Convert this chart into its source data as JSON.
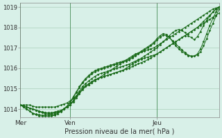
{
  "title": "",
  "xlabel": "Pression niveau de la mer( hPa )",
  "ylabel": "",
  "bg_color": "#d8f0e8",
  "grid_color": "#a0c8b0",
  "line_color": "#1a6b1a",
  "ylim": [
    1013.6,
    1019.2
  ],
  "xlim": [
    0,
    64
  ],
  "day_labels": [
    "Mer",
    "Ven",
    "Jeu"
  ],
  "day_positions": [
    0,
    16,
    44
  ],
  "yticks": [
    1014,
    1015,
    1016,
    1017,
    1018,
    1019
  ],
  "series": [
    {
      "x": [
        0,
        1,
        2,
        3,
        4,
        5,
        6,
        7,
        8,
        9,
        10,
        11,
        12,
        13,
        14,
        15,
        16,
        17,
        18,
        19,
        20,
        21,
        22,
        23,
        24,
        25,
        26,
        27,
        28,
        29,
        30,
        31,
        32,
        33,
        34,
        35,
        36,
        37,
        38,
        39,
        40,
        41,
        42,
        43,
        44,
        45,
        46,
        47,
        48,
        49,
        50,
        51,
        52,
        53,
        54,
        55,
        56,
        57,
        58,
        59,
        60,
        61,
        62,
        63,
        64
      ],
      "y": [
        1014.2,
        1014.2,
        1014.2,
        1014.2,
        1014.15,
        1014.1,
        1014.1,
        1014.1,
        1014.1,
        1014.1,
        1014.1,
        1014.1,
        1014.15,
        1014.2,
        1014.25,
        1014.3,
        1014.4,
        1014.5,
        1014.65,
        1014.8,
        1015.0,
        1015.1,
        1015.2,
        1015.3,
        1015.4,
        1015.5,
        1015.6,
        1015.7,
        1015.8,
        1015.9,
        1016.0,
        1016.1,
        1016.2,
        1016.3,
        1016.4,
        1016.5,
        1016.6,
        1016.7,
        1016.75,
        1016.8,
        1016.85,
        1016.9,
        1016.95,
        1017.0,
        1017.1,
        1017.2,
        1017.3,
        1017.4,
        1017.5,
        1017.6,
        1017.7,
        1017.8,
        1017.9,
        1018.0,
        1018.1,
        1018.2,
        1018.3,
        1018.4,
        1018.5,
        1018.6,
        1018.7,
        1018.8,
        1018.9,
        1018.95,
        1019.0
      ]
    },
    {
      "x": [
        0,
        1,
        2,
        3,
        4,
        5,
        6,
        7,
        8,
        9,
        10,
        11,
        12,
        13,
        14,
        15,
        16,
        17,
        18,
        19,
        20,
        21,
        22,
        23,
        24,
        25,
        26,
        27,
        28,
        29,
        30,
        31,
        32,
        33,
        34,
        35,
        36,
        37,
        38,
        39,
        40,
        41,
        42,
        43,
        44,
        45,
        46,
        47,
        48,
        49,
        50,
        51,
        52,
        53,
        54,
        55,
        56,
        57,
        58,
        59,
        60,
        61,
        62,
        63,
        64
      ],
      "y": [
        1014.2,
        1014.15,
        1014.1,
        1014.05,
        1014.0,
        1013.95,
        1013.9,
        1013.85,
        1013.82,
        1013.82,
        1013.82,
        1013.85,
        1013.9,
        1013.95,
        1014.0,
        1014.1,
        1014.2,
        1014.35,
        1014.55,
        1014.75,
        1014.95,
        1015.1,
        1015.2,
        1015.3,
        1015.4,
        1015.5,
        1015.55,
        1015.6,
        1015.65,
        1015.7,
        1015.75,
        1015.8,
        1015.85,
        1015.9,
        1016.0,
        1016.1,
        1016.2,
        1016.3,
        1016.38,
        1016.45,
        1016.5,
        1016.55,
        1016.6,
        1016.65,
        1016.7,
        1016.8,
        1016.9,
        1017.0,
        1017.1,
        1017.2,
        1017.3,
        1017.4,
        1017.5,
        1017.6,
        1017.7,
        1017.8,
        1017.9,
        1018.0,
        1018.1,
        1018.2,
        1018.3,
        1018.4,
        1018.5,
        1018.6,
        1018.7
      ]
    },
    {
      "x": [
        0,
        1,
        2,
        3,
        4,
        5,
        6,
        7,
        8,
        9,
        10,
        11,
        12,
        13,
        14,
        15,
        16,
        17,
        18,
        19,
        20,
        21,
        22,
        23,
        24,
        25,
        26,
        27,
        28,
        29,
        30,
        31,
        32,
        33,
        34,
        35,
        36,
        37,
        38,
        39,
        40,
        41,
        42,
        43,
        44,
        45,
        46,
        47,
        48,
        49,
        50,
        51,
        52,
        53,
        54,
        55,
        56,
        57,
        58,
        59,
        60,
        61,
        62,
        63,
        64
      ],
      "y": [
        1014.2,
        1014.15,
        1014.1,
        1014.05,
        1014.0,
        1013.95,
        1013.9,
        1013.85,
        1013.82,
        1013.8,
        1013.8,
        1013.82,
        1013.85,
        1013.9,
        1014.0,
        1014.1,
        1014.2,
        1014.4,
        1014.6,
        1014.8,
        1015.0,
        1015.15,
        1015.25,
        1015.35,
        1015.45,
        1015.5,
        1015.55,
        1015.6,
        1015.65,
        1015.7,
        1015.75,
        1015.8,
        1015.85,
        1015.9,
        1015.95,
        1016.0,
        1016.08,
        1016.15,
        1016.22,
        1016.28,
        1016.35,
        1016.42,
        1016.5,
        1016.6,
        1016.7,
        1016.8,
        1016.9,
        1017.0,
        1017.1,
        1017.2,
        1017.3,
        1017.4,
        1017.5,
        1017.6,
        1017.7,
        1017.8,
        1017.9,
        1018.0,
        1018.15,
        1018.3,
        1018.45,
        1018.6,
        1018.75,
        1018.9,
        1019.0
      ]
    },
    {
      "x": [
        0,
        1,
        2,
        3,
        4,
        5,
        6,
        7,
        8,
        9,
        10,
        11,
        12,
        13,
        14,
        15,
        16,
        17,
        18,
        19,
        20,
        21,
        22,
        23,
        24,
        25,
        26,
        27,
        28,
        29,
        30,
        31,
        32,
        33,
        34,
        35,
        36,
        37,
        38,
        39,
        40,
        41,
        42,
        43,
        44,
        45,
        46,
        47,
        48,
        49,
        50,
        51,
        52,
        53,
        54,
        55,
        56,
        57,
        58,
        59,
        60,
        61,
        62,
        63,
        64
      ],
      "y": [
        1014.2,
        1014.15,
        1014.1,
        1014.05,
        1014.0,
        1013.95,
        1013.88,
        1013.82,
        1013.78,
        1013.75,
        1013.75,
        1013.78,
        1013.82,
        1013.9,
        1014.0,
        1014.1,
        1014.2,
        1014.42,
        1014.65,
        1014.88,
        1015.1,
        1015.25,
        1015.38,
        1015.5,
        1015.6,
        1015.7,
        1015.75,
        1015.8,
        1015.85,
        1015.9,
        1015.95,
        1016.0,
        1016.05,
        1016.1,
        1016.15,
        1016.2,
        1016.28,
        1016.35,
        1016.42,
        1016.5,
        1016.6,
        1016.7,
        1016.8,
        1016.9,
        1017.0,
        1017.15,
        1017.3,
        1017.45,
        1017.6,
        1017.75,
        1017.85,
        1017.9,
        1017.85,
        1017.75,
        1017.6,
        1017.5,
        1017.4,
        1017.55,
        1017.8,
        1018.1,
        1018.35,
        1018.55,
        1018.75,
        1018.9,
        1019.0
      ]
    },
    {
      "x": [
        0,
        1,
        2,
        3,
        4,
        5,
        6,
        7,
        8,
        9,
        10,
        11,
        12,
        13,
        14,
        15,
        16,
        17,
        18,
        19,
        20,
        21,
        22,
        23,
        24,
        25,
        26,
        27,
        28,
        29,
        30,
        31,
        32,
        33,
        34,
        35,
        36,
        37,
        38,
        39,
        40,
        41,
        42,
        43,
        44,
        45,
        46,
        47,
        48,
        49,
        50,
        51,
        52,
        53,
        54,
        55,
        56,
        57,
        58,
        59,
        60,
        61,
        62,
        63,
        64
      ],
      "y": [
        1014.2,
        1014.1,
        1014.0,
        1013.9,
        1013.8,
        1013.75,
        1013.72,
        1013.7,
        1013.7,
        1013.7,
        1013.7,
        1013.72,
        1013.78,
        1013.88,
        1014.0,
        1014.12,
        1014.3,
        1014.55,
        1014.8,
        1015.05,
        1015.28,
        1015.45,
        1015.6,
        1015.72,
        1015.82,
        1015.9,
        1015.95,
        1016.0,
        1016.05,
        1016.1,
        1016.15,
        1016.2,
        1016.25,
        1016.3,
        1016.35,
        1016.4,
        1016.5,
        1016.6,
        1016.7,
        1016.8,
        1016.9,
        1017.0,
        1017.1,
        1017.22,
        1017.38,
        1017.52,
        1017.62,
        1017.6,
        1017.5,
        1017.35,
        1017.2,
        1017.05,
        1016.9,
        1016.78,
        1016.65,
        1016.6,
        1016.6,
        1016.65,
        1016.8,
        1017.1,
        1017.45,
        1017.85,
        1018.2,
        1018.55,
        1018.9
      ]
    },
    {
      "x": [
        0,
        1,
        2,
        3,
        4,
        5,
        6,
        7,
        8,
        9,
        10,
        11,
        12,
        13,
        14,
        15,
        16,
        17,
        18,
        19,
        20,
        21,
        22,
        23,
        24,
        25,
        26,
        27,
        28,
        29,
        30,
        31,
        32,
        33,
        34,
        35,
        36,
        37,
        38,
        39,
        40,
        41,
        42,
        43,
        44,
        45,
        46,
        47,
        48,
        49,
        50,
        51,
        52,
        53,
        54,
        55,
        56,
        57,
        58,
        59,
        60,
        61,
        62,
        63,
        64
      ],
      "y": [
        1014.2,
        1014.1,
        1014.0,
        1013.9,
        1013.78,
        1013.72,
        1013.68,
        1013.65,
        1013.65,
        1013.65,
        1013.65,
        1013.7,
        1013.78,
        1013.9,
        1014.02,
        1014.15,
        1014.35,
        1014.6,
        1014.85,
        1015.1,
        1015.32,
        1015.5,
        1015.65,
        1015.78,
        1015.88,
        1015.95,
        1016.0,
        1016.05,
        1016.1,
        1016.15,
        1016.2,
        1016.25,
        1016.3,
        1016.35,
        1016.4,
        1016.45,
        1016.55,
        1016.65,
        1016.75,
        1016.85,
        1016.95,
        1017.05,
        1017.15,
        1017.28,
        1017.45,
        1017.6,
        1017.7,
        1017.65,
        1017.5,
        1017.3,
        1017.1,
        1016.95,
        1016.82,
        1016.72,
        1016.62,
        1016.58,
        1016.6,
        1016.7,
        1016.95,
        1017.3,
        1017.7,
        1018.1,
        1018.45,
        1018.75,
        1019.0
      ]
    }
  ]
}
